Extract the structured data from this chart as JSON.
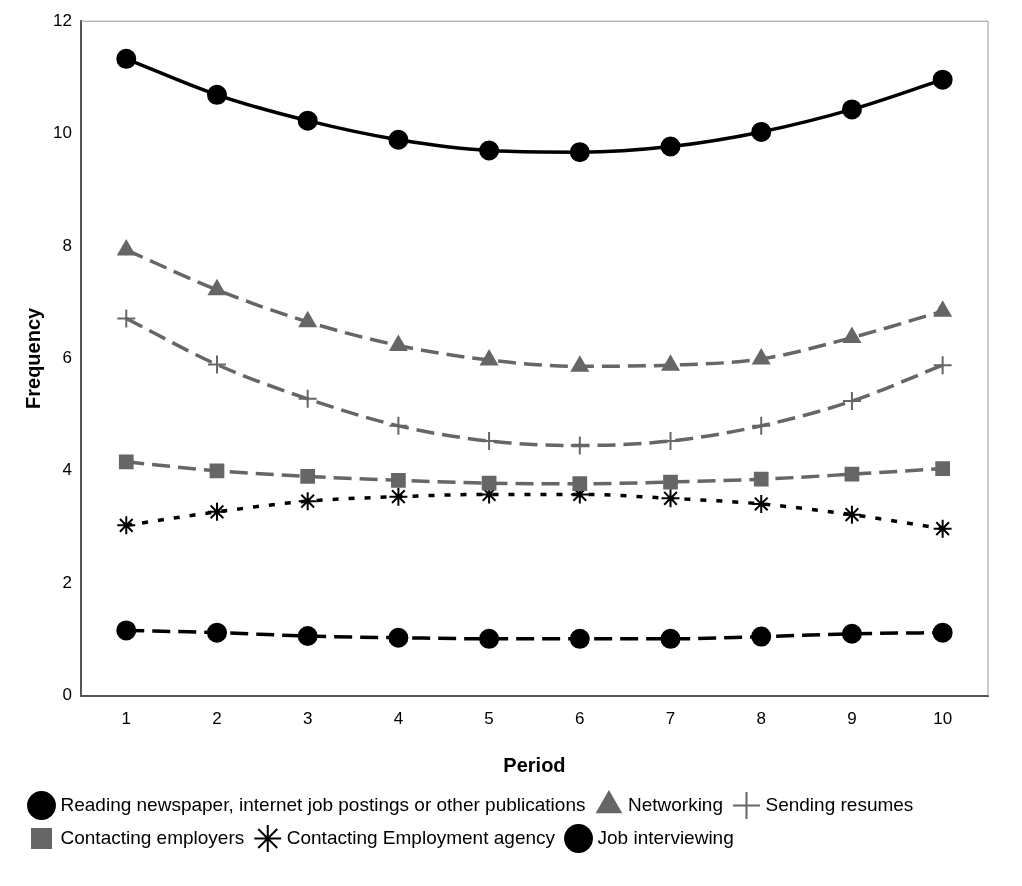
{
  "chart_data": {
    "type": "line",
    "xlabel": "Period",
    "ylabel": "Frequency",
    "categories": [
      "1",
      "2",
      "3",
      "4",
      "5",
      "6",
      "7",
      "8",
      "9",
      "10"
    ],
    "ylim": [
      0,
      12
    ],
    "yticks": [
      0,
      2,
      4,
      6,
      8,
      10,
      12
    ],
    "grid": false,
    "legend": "bottom",
    "series": [
      {
        "name": "Reading newspaper, internet job postings or other publications",
        "color": "#000000",
        "marker": "circle",
        "line_style": "solid",
        "values": [
          11.33,
          10.69,
          10.23,
          9.89,
          9.7,
          9.67,
          9.77,
          10.03,
          10.43,
          10.96
        ]
      },
      {
        "name": "Networking",
        "color": "#666666",
        "marker": "triangle",
        "line_style": "dashed",
        "values": [
          7.93,
          7.22,
          6.65,
          6.23,
          5.97,
          5.86,
          5.88,
          5.99,
          6.37,
          6.84
        ]
      },
      {
        "name": "Sending resumes",
        "color": "#666666",
        "marker": "cross",
        "line_style": "dashed",
        "values": [
          6.71,
          5.89,
          5.28,
          4.8,
          4.53,
          4.45,
          4.53,
          4.8,
          5.24,
          5.88
        ]
      },
      {
        "name": "Contacting employers",
        "color": "#666666",
        "marker": "square",
        "line_style": "dashed",
        "values": [
          4.16,
          4.0,
          3.9,
          3.83,
          3.78,
          3.77,
          3.8,
          3.85,
          3.94,
          4.04
        ]
      },
      {
        "name": "Contacting Employment agency",
        "color": "#000000",
        "marker": "cross",
        "line_style": "dotted",
        "values": [
          3.03,
          3.27,
          3.46,
          3.54,
          3.58,
          3.58,
          3.51,
          3.41,
          3.22,
          2.97
        ]
      },
      {
        "name": "Job interviewing",
        "color": "#000000",
        "marker": "circle",
        "line_style": "dashed",
        "values": [
          1.16,
          1.12,
          1.06,
          1.03,
          1.01,
          1.01,
          1.01,
          1.05,
          1.1,
          1.12
        ]
      }
    ]
  }
}
